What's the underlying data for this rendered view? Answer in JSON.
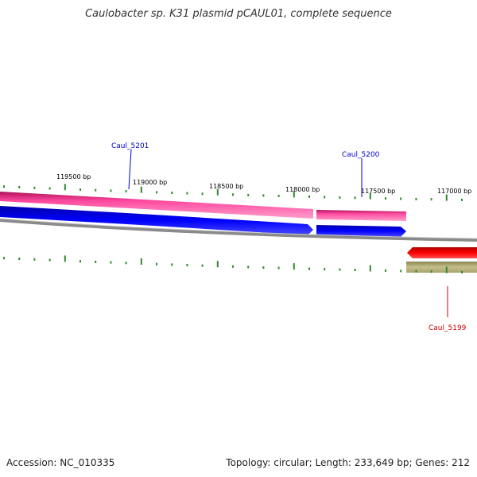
{
  "title": "Caulobacter sp. K31 plasmid pCAUL01, complete sequence",
  "footer": {
    "accession": "Accession: NC_010335",
    "topology": "Topology: circular; Length: 233,649 bp; Genes: 212"
  },
  "colors": {
    "pink_track": "#e8287f",
    "blue_track": "#0000e6",
    "backbone": "#8a8a8a",
    "red_track": "#ff0000",
    "khaki_track": "#b4ae78",
    "tick_marks": "#2e8b2e",
    "label_blue": "#0000cc",
    "label_red": "#cc0000"
  },
  "scale_labels": [
    "119500 bp",
    "119000 bp",
    "118500 bp",
    "118000 bp",
    "117500 bp",
    "117000 bp"
  ],
  "gene_labels": [
    "Caul_5201",
    "Caul_5200",
    "Caul_5199"
  ]
}
